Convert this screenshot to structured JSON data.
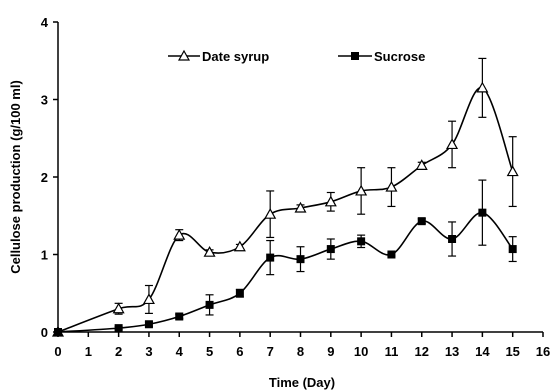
{
  "chart_data": {
    "type": "line",
    "title": "",
    "xlabel": "Time (Day)",
    "ylabel": "Cellulose production (g/100 ml)",
    "xlim": [
      0,
      16
    ],
    "ylim": [
      0,
      4
    ],
    "x_ticks": [
      "0",
      "1",
      "2",
      "3",
      "4",
      "5",
      "6",
      "7",
      "8",
      "9",
      "10",
      "11",
      "12",
      "13",
      "14",
      "15",
      "16"
    ],
    "y_ticks": [
      "0",
      "1",
      "2",
      "3",
      "4"
    ],
    "grid": false,
    "legend_position": "top",
    "series": [
      {
        "name": "Date syrup",
        "marker": "open-triangle",
        "color": "#000000",
        "x": [
          0,
          2,
          3,
          4,
          5,
          6,
          7,
          8,
          9,
          10,
          11,
          12,
          13,
          14,
          15
        ],
        "y": [
          0,
          0.3,
          0.42,
          1.25,
          1.03,
          1.1,
          1.52,
          1.6,
          1.68,
          1.82,
          1.87,
          2.15,
          2.42,
          3.15,
          2.07
        ],
        "error": [
          0,
          0.07,
          0.18,
          0.07,
          0.03,
          0.03,
          0.3,
          0.04,
          0.12,
          0.3,
          0.25,
          0.04,
          0.3,
          0.38,
          0.45
        ]
      },
      {
        "name": "Sucrose",
        "marker": "filled-square",
        "color": "#000000",
        "x": [
          0,
          2,
          3,
          4,
          5,
          6,
          7,
          8,
          9,
          10,
          11,
          12,
          13,
          14,
          15
        ],
        "y": [
          0,
          0.05,
          0.1,
          0.2,
          0.35,
          0.5,
          0.96,
          0.94,
          1.07,
          1.17,
          1.0,
          1.43,
          1.2,
          1.54,
          1.07
        ],
        "error": [
          0,
          0.02,
          0.03,
          0.03,
          0.13,
          0.05,
          0.22,
          0.16,
          0.13,
          0.08,
          0.02,
          0.03,
          0.22,
          0.42,
          0.16
        ]
      }
    ]
  }
}
